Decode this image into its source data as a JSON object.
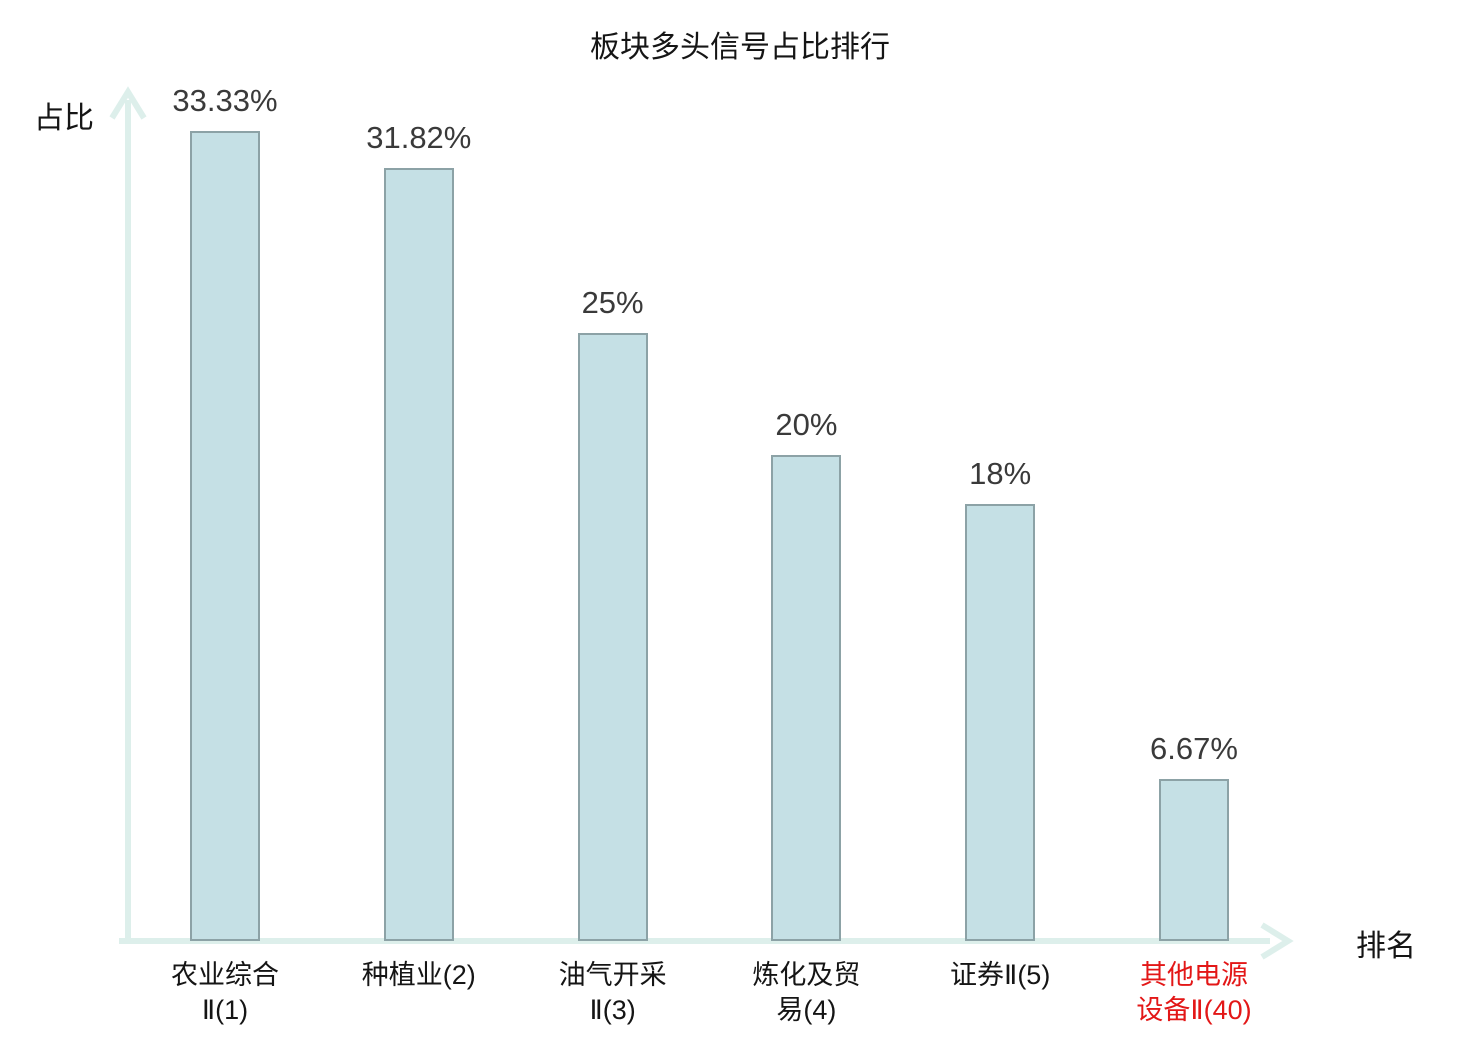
{
  "title": "板块多头信号占比排行",
  "axes": {
    "y_label": "占比",
    "x_label": "排名",
    "ticks_visible": false
  },
  "colors": {
    "bar_fill": "#c5e0e5",
    "bar_border": "#8ca2a6",
    "axis": "#ddefeb",
    "value_text": "#3a3a3a",
    "category_text": "#151515",
    "highlight_text": "#e31717"
  },
  "chart_data": {
    "type": "bar",
    "title": "板块多头信号占比排行",
    "xlabel": "排名",
    "ylabel": "占比",
    "categories": [
      "农业综合Ⅱ(1)",
      "种植业(2)",
      "油气开采Ⅱ(3)",
      "炼化及贸易(4)",
      "证券Ⅱ(5)",
      "其他电源设备Ⅱ(40)"
    ],
    "category_lines": [
      [
        "农业综合",
        "Ⅱ(1)"
      ],
      [
        "种植业(2)"
      ],
      [
        "油气开采",
        "Ⅱ(3)"
      ],
      [
        "炼化及贸",
        "易(4)"
      ],
      [
        "证券Ⅱ(5)"
      ],
      [
        "其他电源",
        "设备Ⅱ(40)"
      ]
    ],
    "values": [
      33.33,
      31.82,
      25,
      20,
      18,
      6.67
    ],
    "value_labels": [
      "33.33%",
      "31.82%",
      "25%",
      "20%",
      "18%",
      "6.67%"
    ],
    "highlight_index": 5,
    "ylim": [
      0,
      35
    ],
    "grid": false,
    "legend": null
  }
}
